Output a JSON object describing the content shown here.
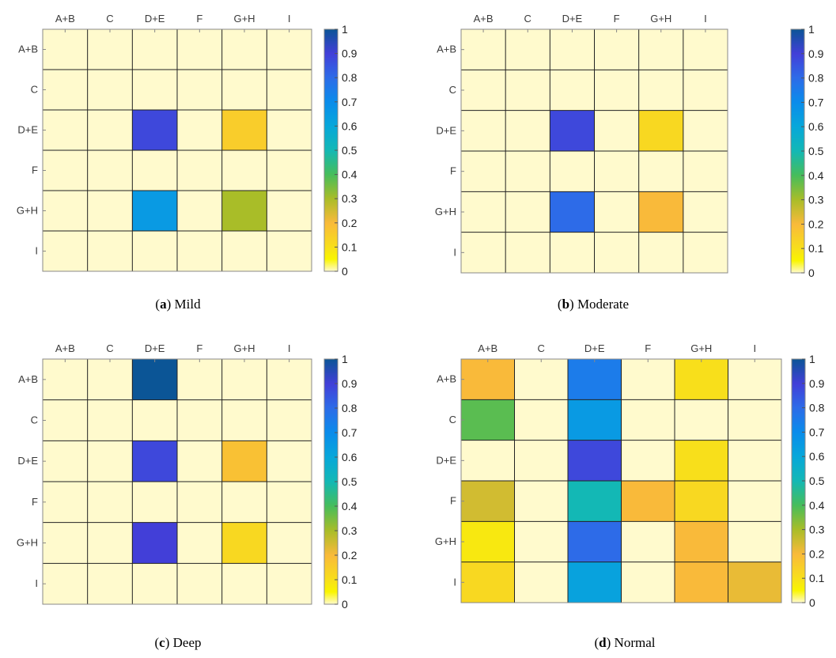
{
  "chart_data": [
    {
      "type": "heatmap",
      "panel_label": "a",
      "caption": "Mild",
      "categories": [
        "A+B",
        "C",
        "D+E",
        "F",
        "G+H",
        "I"
      ],
      "values": [
        [
          0,
          0,
          0,
          0,
          0,
          0
        ],
        [
          0,
          0,
          0,
          0,
          0,
          0
        ],
        [
          0,
          0,
          0.88,
          0,
          0.15,
          0
        ],
        [
          0,
          0,
          0,
          0,
          0,
          0
        ],
        [
          0,
          0,
          0.65,
          0,
          0.3,
          0
        ],
        [
          0,
          0,
          0,
          0,
          0,
          0
        ]
      ],
      "colorbar": {
        "min": 0,
        "max": 1,
        "ticks": [
          "0",
          "0.1",
          "0.2",
          "0.3",
          "0.4",
          "0.5",
          "0.6",
          "0.7",
          "0.8",
          "0.9",
          "1"
        ]
      }
    },
    {
      "type": "heatmap",
      "panel_label": "b",
      "caption": "Moderate",
      "categories": [
        "A+B",
        "C",
        "D+E",
        "F",
        "G+H",
        "I"
      ],
      "values": [
        [
          0,
          0,
          0,
          0,
          0,
          0
        ],
        [
          0,
          0,
          0,
          0,
          0,
          0
        ],
        [
          0,
          0,
          0.88,
          0,
          0.12,
          0
        ],
        [
          0,
          0,
          0,
          0,
          0,
          0
        ],
        [
          0,
          0,
          0.8,
          0,
          0.2,
          0
        ],
        [
          0,
          0,
          0,
          0,
          0,
          0
        ]
      ],
      "colorbar": {
        "min": 0,
        "max": 1,
        "ticks": [
          "0",
          "0.1",
          "0.2",
          "0.3",
          "0.4",
          "0.5",
          "0.6",
          "0.7",
          "0.8",
          "0.9",
          "1"
        ]
      }
    },
    {
      "type": "heatmap",
      "panel_label": "c",
      "caption": "Deep",
      "categories": [
        "A+B",
        "C",
        "D+E",
        "F",
        "G+H",
        "I"
      ],
      "values": [
        [
          0,
          0,
          1,
          0,
          0,
          0
        ],
        [
          0,
          0,
          0,
          0,
          0,
          0
        ],
        [
          0,
          0,
          0.88,
          0,
          0.18,
          0
        ],
        [
          0,
          0,
          0,
          0,
          0,
          0
        ],
        [
          0,
          0,
          0.9,
          0,
          0.12,
          0
        ],
        [
          0,
          0,
          0,
          0,
          0,
          0
        ]
      ],
      "colorbar": {
        "min": 0,
        "max": 1,
        "ticks": [
          "0",
          "0.1",
          "0.2",
          "0.3",
          "0.4",
          "0.5",
          "0.6",
          "0.7",
          "0.8",
          "0.9",
          "1"
        ]
      }
    },
    {
      "type": "heatmap",
      "panel_label": "d",
      "caption": "Normal",
      "categories": [
        "A+B",
        "C",
        "D+E",
        "F",
        "G+H",
        "I"
      ],
      "values": [
        [
          0.2,
          0,
          0.75,
          0,
          0.1,
          0
        ],
        [
          0.38,
          0,
          0.65,
          0,
          0,
          0
        ],
        [
          0,
          0,
          0.88,
          0,
          0.1,
          0
        ],
        [
          0.25,
          0,
          0.5,
          0.2,
          0.12,
          0
        ],
        [
          0.08,
          0,
          0.8,
          0,
          0.2,
          0
        ],
        [
          0.12,
          0,
          0.62,
          0,
          0.2,
          0.22
        ]
      ],
      "colorbar": {
        "min": 0,
        "max": 1,
        "ticks": [
          "0",
          "0.1",
          "0.2",
          "0.3",
          "0.4",
          "0.5",
          "0.6",
          "0.7",
          "0.8",
          "0.9",
          "1"
        ]
      }
    }
  ],
  "colormap": {
    "name": "parula-reversed",
    "stops": [
      {
        "value": 0,
        "color": "#fffacd"
      },
      {
        "value": 0.05,
        "color": "#f9f500"
      },
      {
        "value": 0.1,
        "color": "#f8df1b"
      },
      {
        "value": 0.2,
        "color": "#f9ba3a"
      },
      {
        "value": 0.3,
        "color": "#a9bd28"
      },
      {
        "value": 0.4,
        "color": "#46bd5b"
      },
      {
        "value": 0.5,
        "color": "#13b8b5"
      },
      {
        "value": 0.6,
        "color": "#07a7da"
      },
      {
        "value": 0.7,
        "color": "#0a8ceb"
      },
      {
        "value": 0.8,
        "color": "#2d6be8"
      },
      {
        "value": 0.9,
        "color": "#423fd8"
      },
      {
        "value": 1.0,
        "color": "#0b5596"
      }
    ]
  },
  "colors": {
    "grid_line": "#222222",
    "frame": "#888888",
    "tick_text": "#3a3a3a"
  }
}
